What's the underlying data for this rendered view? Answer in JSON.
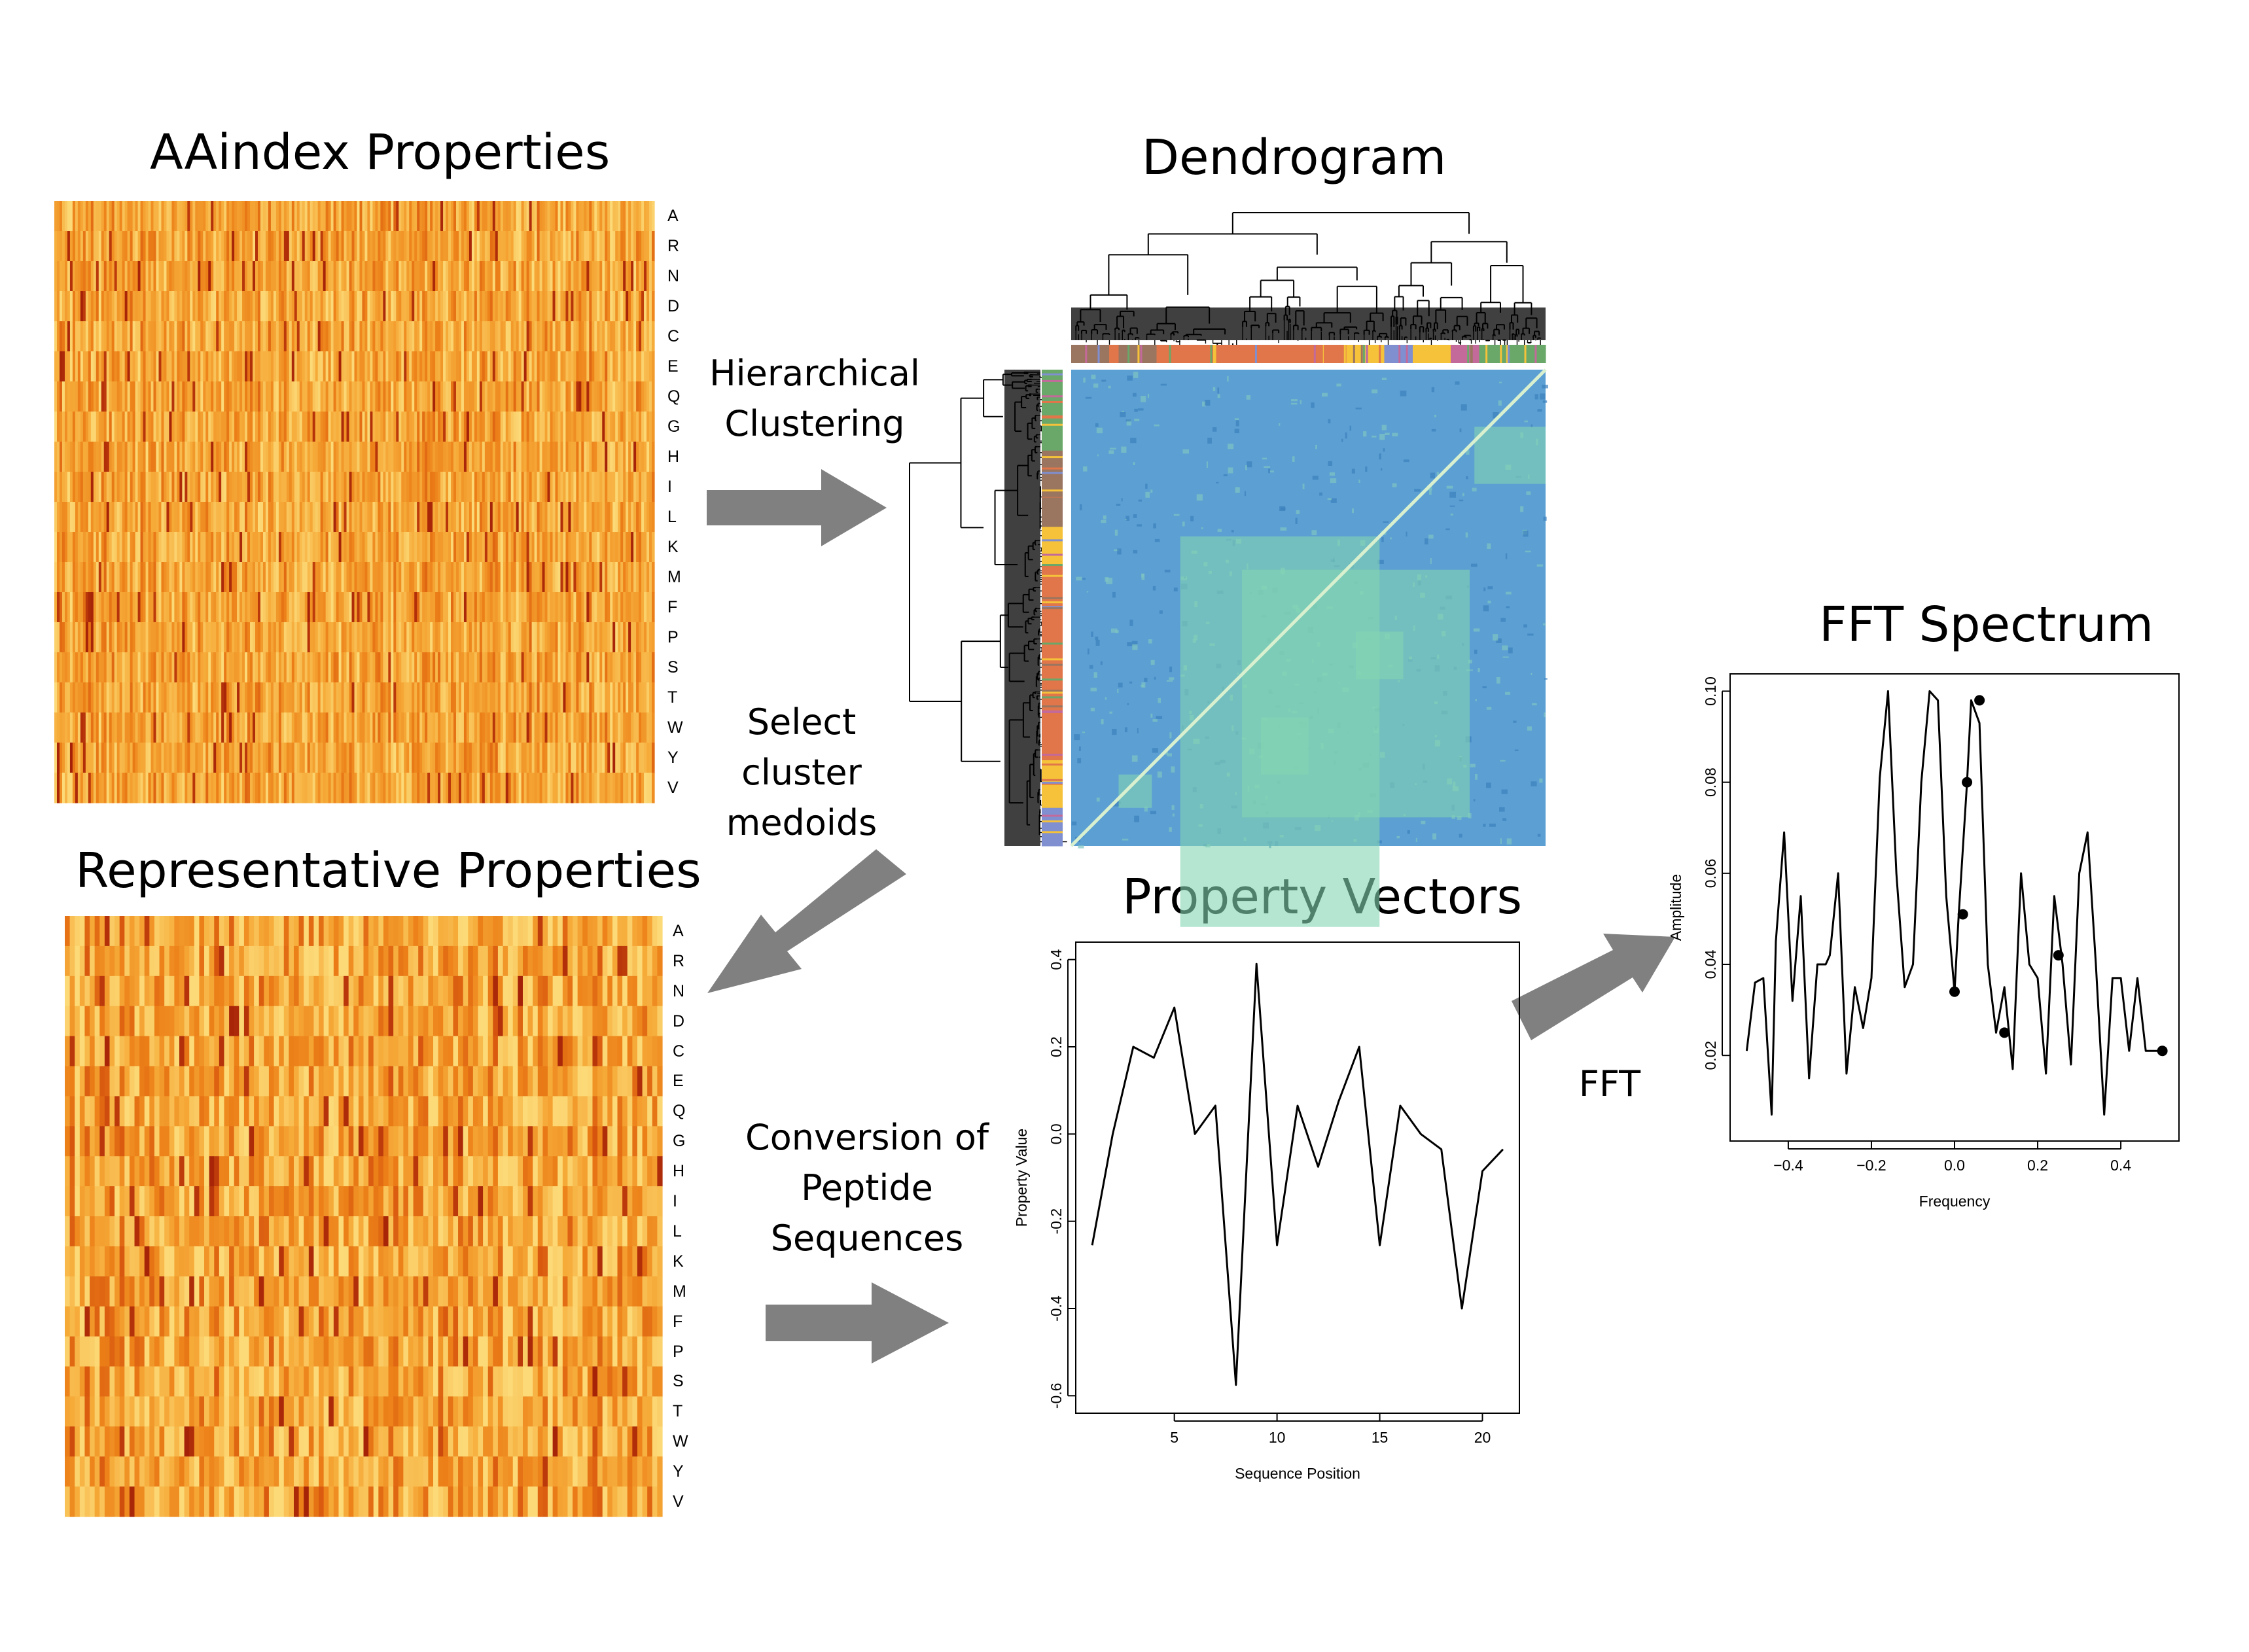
{
  "titles": {
    "aaindex": "AAindex Properties",
    "dendrogram": "Dendrogram",
    "representative": "Representative Properties",
    "property_vectors": "Property Vectors",
    "fft_spectrum": "FFT Spectrum"
  },
  "steps": {
    "hierarchical": "Hierarchical\nClustering",
    "select": "Select\ncluster\nmedoids",
    "conversion": "Conversion of\nPeptide\nSequences",
    "fft": "FFT"
  },
  "amino_acids": [
    "A",
    "R",
    "N",
    "D",
    "C",
    "E",
    "Q",
    "G",
    "H",
    "I",
    "L",
    "K",
    "M",
    "F",
    "P",
    "S",
    "T",
    "W",
    "Y",
    "V"
  ],
  "colors": {
    "heatmap_low": "#f5c242",
    "heatmap_mid": "#f08a18",
    "heatmap_high": "#b52f0a",
    "matrix_bg": "#5b9fd3",
    "matrix_high": "#84d6b2",
    "arrow": "#808080",
    "cluster_palette": [
      "#6aa86a",
      "#e0764a",
      "#f5c23a",
      "#7f8fd0",
      "#c46a9a",
      "#9a7560"
    ]
  },
  "chart_data": [
    {
      "type": "line",
      "title": "Property Vectors",
      "xlabel": "Sequence Position",
      "ylabel": "Property Value",
      "xlim": [
        1,
        21
      ],
      "ylim": [
        -0.6,
        0.4
      ],
      "xticks": [
        5,
        10,
        15,
        20
      ],
      "yticks": [
        -0.6,
        -0.4,
        -0.2,
        0.0,
        0.2,
        0.4
      ],
      "ytick_labels": [
        "-0.6",
        "-0.4",
        "-0.2",
        "0.0",
        "0.2",
        "0.4"
      ],
      "x": [
        1,
        2,
        3,
        4,
        5,
        6,
        7,
        8,
        9,
        10,
        11,
        12,
        13,
        14,
        15,
        16,
        17,
        18,
        19,
        20,
        21
      ],
      "y": [
        -0.255,
        0.0,
        0.2,
        0.175,
        0.29,
        0.0,
        0.065,
        -0.575,
        0.39,
        -0.255,
        0.065,
        -0.075,
        0.075,
        0.2,
        -0.255,
        0.065,
        0.0,
        -0.035,
        -0.4,
        -0.085,
        -0.035
      ]
    },
    {
      "type": "line",
      "title": "FFT Spectrum",
      "xlabel": "Frequency",
      "ylabel": "Amplitude",
      "xlim": [
        -0.5,
        0.5
      ],
      "ylim": [
        0.005,
        0.1
      ],
      "xticks": [
        -0.4,
        -0.2,
        0.0,
        0.2,
        0.4
      ],
      "xtick_labels": [
        "−0.4",
        "−0.2",
        "0.0",
        "0.2",
        "0.4"
      ],
      "yticks": [
        0.02,
        0.04,
        0.06,
        0.08,
        0.1
      ],
      "ytick_labels": [
        "0.02",
        "0.04",
        "0.06",
        "0.08",
        "0.10"
      ],
      "x": [
        -0.5,
        -0.48,
        -0.46,
        -0.44,
        -0.43,
        -0.41,
        -0.39,
        -0.37,
        -0.35,
        -0.33,
        -0.31,
        -0.3,
        -0.28,
        -0.26,
        -0.24,
        -0.22,
        -0.2,
        -0.18,
        -0.16,
        -0.14,
        -0.12,
        -0.1,
        -0.08,
        -0.06,
        -0.04,
        -0.02,
        0.0,
        0.01,
        0.03,
        0.04,
        0.06,
        0.08,
        0.1,
        0.12,
        0.14,
        0.16,
        0.18,
        0.2,
        0.22,
        0.24,
        0.26,
        0.28,
        0.3,
        0.32,
        0.34,
        0.36,
        0.38,
        0.4,
        0.42,
        0.44,
        0.46,
        0.48,
        0.5
      ],
      "y": [
        0.021,
        0.036,
        0.037,
        0.007,
        0.045,
        0.069,
        0.032,
        0.055,
        0.015,
        0.04,
        0.04,
        0.042,
        0.06,
        0.016,
        0.035,
        0.026,
        0.037,
        0.081,
        0.1,
        0.06,
        0.035,
        0.04,
        0.08,
        0.1,
        0.098,
        0.055,
        0.034,
        0.051,
        0.08,
        0.098,
        0.093,
        0.04,
        0.025,
        0.035,
        0.017,
        0.06,
        0.04,
        0.037,
        0.016,
        0.055,
        0.04,
        0.018,
        0.06,
        0.069,
        0.04,
        0.007,
        0.037,
        0.037,
        0.021,
        0.037,
        0.021,
        0.021,
        0.021
      ],
      "points": [
        {
          "x": 0.0,
          "y": 0.034
        },
        {
          "x": 0.02,
          "y": 0.051
        },
        {
          "x": 0.03,
          "y": 0.08
        },
        {
          "x": 0.06,
          "y": 0.098
        },
        {
          "x": 0.12,
          "y": 0.025
        },
        {
          "x": 0.25,
          "y": 0.042
        },
        {
          "x": 0.5,
          "y": 0.021
        }
      ]
    }
  ]
}
